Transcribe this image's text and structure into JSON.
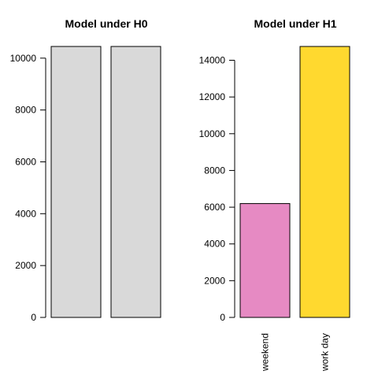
{
  "chart_data": [
    {
      "type": "bar",
      "title": "Model under H0",
      "categories": [
        "",
        ""
      ],
      "values": [
        10450,
        10450
      ],
      "colors": [
        "#d9d9d9",
        "#d9d9d9"
      ],
      "ylim": [
        0,
        10450
      ],
      "yticks": [
        0,
        2000,
        4000,
        6000,
        8000,
        10000
      ],
      "grid": false,
      "xlabel": "",
      "ylabel": ""
    },
    {
      "type": "bar",
      "title": "Model under H1",
      "categories": [
        "weekend",
        "work day"
      ],
      "values": [
        6200,
        14750
      ],
      "colors": [
        "#e68ac3",
        "#ffd92f"
      ],
      "ylim": [
        0,
        14750
      ],
      "yticks": [
        0,
        2000,
        4000,
        6000,
        8000,
        10000,
        12000,
        14000
      ],
      "grid": false,
      "xlabel": "",
      "ylabel": ""
    }
  ]
}
